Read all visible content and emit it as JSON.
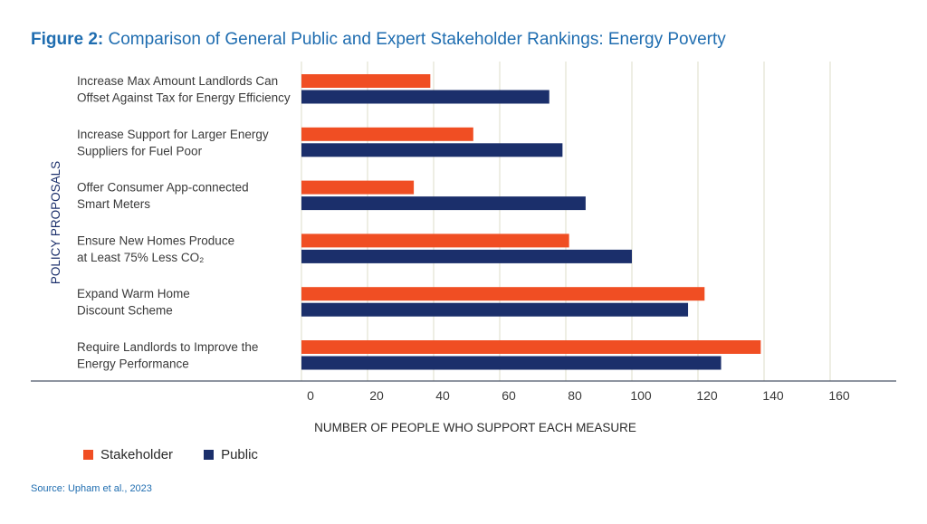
{
  "title": {
    "prefix": "Figure 2:",
    "text": "Comparison of General Public and Expert Stakeholder Rankings: Energy Poverty"
  },
  "colors": {
    "stakeholder": "#f04e23",
    "public": "#1b2f6b",
    "title": "#1f6db0",
    "text": "#3a3a3a",
    "grid": "#dcdcc8",
    "axis": "#4a5568"
  },
  "chart_data": {
    "type": "bar",
    "orientation": "horizontal",
    "categories": [
      [
        "Increase Max Amount Landlords Can",
        "Offset Against Tax for Energy Efficiency"
      ],
      [
        "Increase Support for Larger Energy",
        "Suppliers for Fuel Poor"
      ],
      [
        "Offer Consumer App-connected",
        "Smart Meters"
      ],
      [
        "Ensure New Homes Produce",
        "at Least 75% Less CO₂"
      ],
      [
        "Expand Warm Home",
        "Discount Scheme"
      ],
      [
        "Require Landlords to Improve the",
        "Energy Performance"
      ]
    ],
    "series": [
      {
        "name": "Stakeholder",
        "values": [
          39,
          52,
          34,
          81,
          122,
          139
        ]
      },
      {
        "name": "Public",
        "values": [
          75,
          79,
          86,
          100,
          117,
          127
        ]
      }
    ],
    "xlabel": "NUMBER OF PEOPLE WHO SUPPORT EACH MEASURE",
    "ylabel": "POLICY PROPOSALS",
    "xlim": [
      0,
      160
    ],
    "xticks": [
      0,
      20,
      40,
      60,
      80,
      100,
      120,
      140,
      160
    ],
    "grid": true,
    "legend": "bottom-left"
  },
  "legend": {
    "stakeholder_label": "Stakeholder",
    "public_label": "Public"
  },
  "source": "Source: Upham et al., 2023"
}
